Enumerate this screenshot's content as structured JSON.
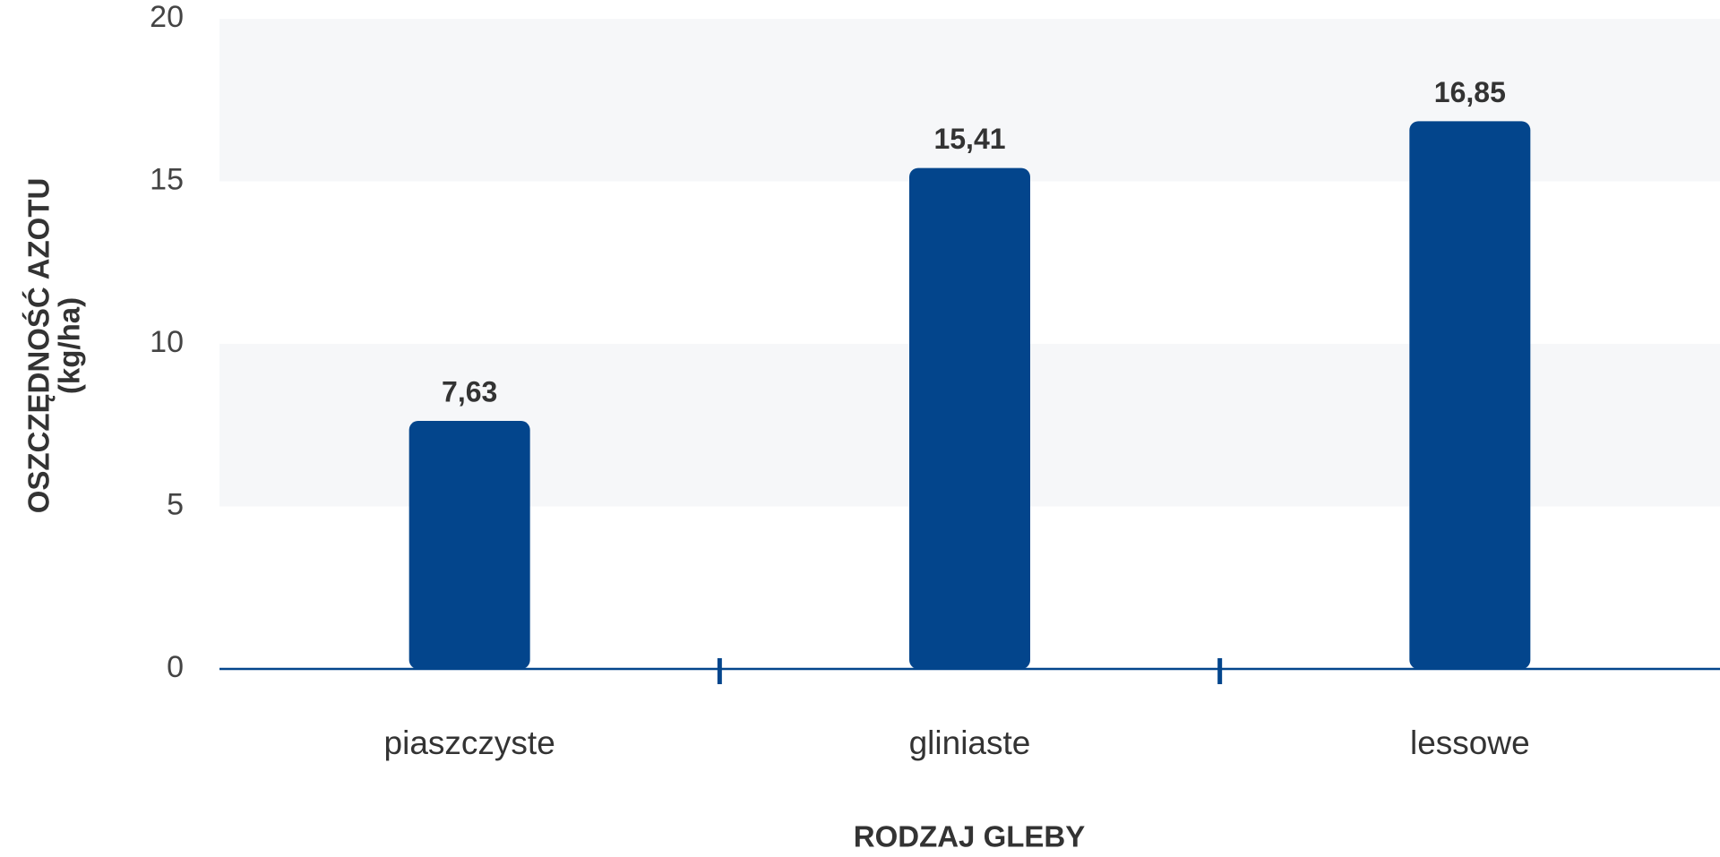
{
  "chart_data": {
    "type": "bar",
    "y_label": [
      "OSZCZĘDNOŚĆ AZOTU",
      "(kg/ha)"
    ],
    "x_label": "RODZAJ GLEBY",
    "categories": [
      "piaszczyste",
      "gliniaste",
      "lessowe"
    ],
    "values": [
      7.63,
      15.41,
      16.85
    ],
    "value_labels": [
      "7,63",
      "15,41",
      "16,85"
    ],
    "color": "#03458c",
    "ylim": [
      0,
      20
    ],
    "yticks": [
      0,
      5,
      10,
      15,
      20
    ],
    "alternate_bands": true
  }
}
